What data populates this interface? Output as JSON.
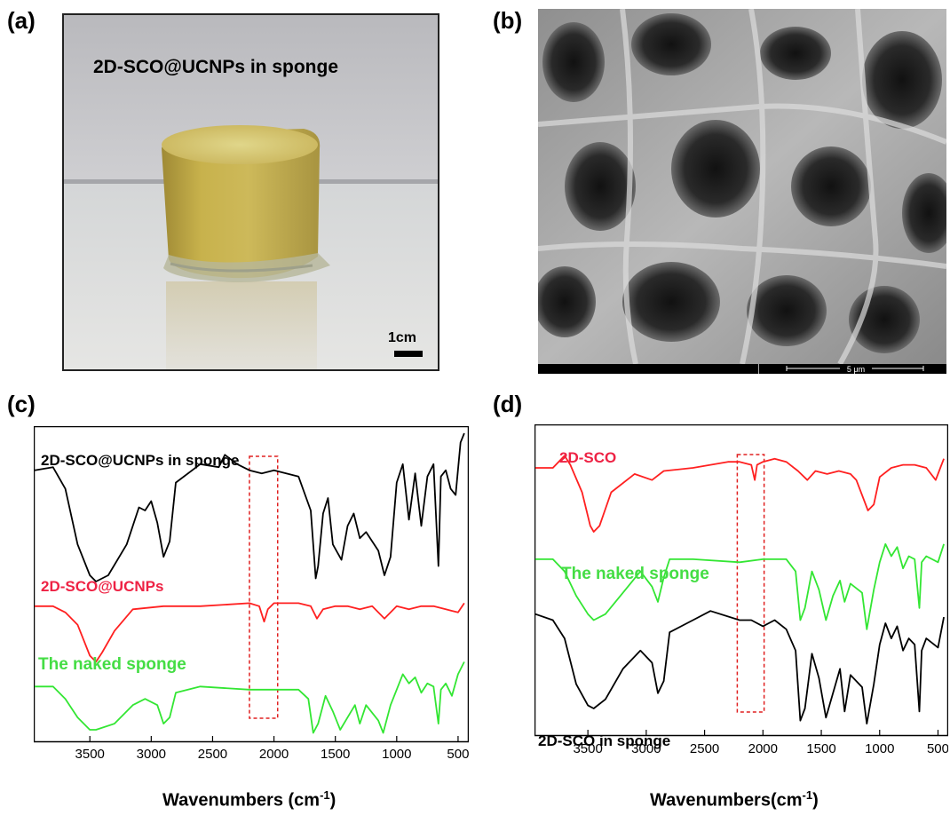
{
  "panels": {
    "a": {
      "label": "(a)",
      "caption": "2D-SCO@UCNPs in sponge",
      "scale_text": "1cm"
    },
    "b": {
      "label": "(b)",
      "scale_text": "5 μm"
    },
    "c": {
      "label": "(c)",
      "xlabel_text": "Wavenumbers (cm",
      "xlabel_sup": "-1",
      "xlabel_end": ")"
    },
    "d": {
      "label": "(d)",
      "xlabel_text": "Wavenumbers(cm",
      "xlabel_sup": "-1",
      "xlabel_end": ")"
    }
  },
  "chart_data": [
    {
      "type": "line",
      "panel": "c",
      "xlabel": "Wavenumbers (cm-1)",
      "ylabel": "",
      "xlim": [
        3950,
        420
      ],
      "x_reversed": true,
      "xticks": [
        3500,
        3000,
        2500,
        2000,
        1500,
        1000,
        500
      ],
      "grid": false,
      "highlight_range": [
        2200,
        1970
      ],
      "highlight_color": "#e02020",
      "series": [
        {
          "name": "2D-SCO@UCNPs in sponge",
          "color": "#000000",
          "label_color": "#000000",
          "points": [
            [
              3950,
              0.86
            ],
            [
              3800,
              0.87
            ],
            [
              3700,
              0.8
            ],
            [
              3600,
              0.62
            ],
            [
              3500,
              0.52
            ],
            [
              3450,
              0.5
            ],
            [
              3350,
              0.52
            ],
            [
              3200,
              0.62
            ],
            [
              3100,
              0.74
            ],
            [
              3050,
              0.73
            ],
            [
              3000,
              0.76
            ],
            [
              2950,
              0.69
            ],
            [
              2900,
              0.58
            ],
            [
              2850,
              0.63
            ],
            [
              2800,
              0.82
            ],
            [
              2600,
              0.88
            ],
            [
              2450,
              0.87
            ],
            [
              2400,
              0.91
            ],
            [
              2300,
              0.88
            ],
            [
              2200,
              0.86
            ],
            [
              2100,
              0.85
            ],
            [
              2000,
              0.86
            ],
            [
              1900,
              0.85
            ],
            [
              1800,
              0.84
            ],
            [
              1700,
              0.73
            ],
            [
              1660,
              0.51
            ],
            [
              1640,
              0.55
            ],
            [
              1600,
              0.72
            ],
            [
              1560,
              0.77
            ],
            [
              1520,
              0.62
            ],
            [
              1450,
              0.57
            ],
            [
              1400,
              0.68
            ],
            [
              1350,
              0.72
            ],
            [
              1300,
              0.64
            ],
            [
              1250,
              0.66
            ],
            [
              1150,
              0.6
            ],
            [
              1100,
              0.52
            ],
            [
              1050,
              0.58
            ],
            [
              1000,
              0.82
            ],
            [
              950,
              0.88
            ],
            [
              900,
              0.7
            ],
            [
              850,
              0.85
            ],
            [
              800,
              0.68
            ],
            [
              750,
              0.84
            ],
            [
              700,
              0.88
            ],
            [
              660,
              0.55
            ],
            [
              640,
              0.84
            ],
            [
              600,
              0.86
            ],
            [
              560,
              0.8
            ],
            [
              520,
              0.78
            ],
            [
              480,
              0.95
            ],
            [
              450,
              0.98
            ]
          ]
        },
        {
          "name": "2D-SCO@UCNPs",
          "color": "#ff2020",
          "label_color": "#ee2244",
          "points": [
            [
              3950,
              0.42
            ],
            [
              3800,
              0.42
            ],
            [
              3700,
              0.4
            ],
            [
              3600,
              0.36
            ],
            [
              3500,
              0.26
            ],
            [
              3450,
              0.24
            ],
            [
              3400,
              0.27
            ],
            [
              3300,
              0.34
            ],
            [
              3150,
              0.41
            ],
            [
              2900,
              0.42
            ],
            [
              2600,
              0.42
            ],
            [
              2200,
              0.43
            ],
            [
              2120,
              0.42
            ],
            [
              2080,
              0.37
            ],
            [
              2050,
              0.41
            ],
            [
              2000,
              0.43
            ],
            [
              1800,
              0.43
            ],
            [
              1700,
              0.42
            ],
            [
              1650,
              0.38
            ],
            [
              1600,
              0.41
            ],
            [
              1500,
              0.42
            ],
            [
              1400,
              0.42
            ],
            [
              1300,
              0.41
            ],
            [
              1200,
              0.42
            ],
            [
              1100,
              0.38
            ],
            [
              1050,
              0.4
            ],
            [
              1000,
              0.42
            ],
            [
              900,
              0.41
            ],
            [
              800,
              0.42
            ],
            [
              700,
              0.42
            ],
            [
              600,
              0.41
            ],
            [
              500,
              0.4
            ],
            [
              450,
              0.43
            ]
          ]
        },
        {
          "name": "The naked sponge",
          "color": "#33e633",
          "label_color": "#44dd44",
          "points": [
            [
              3950,
              0.16
            ],
            [
              3800,
              0.16
            ],
            [
              3700,
              0.12
            ],
            [
              3600,
              0.06
            ],
            [
              3500,
              0.02
            ],
            [
              3450,
              0.02
            ],
            [
              3300,
              0.04
            ],
            [
              3150,
              0.1
            ],
            [
              3050,
              0.12
            ],
            [
              2950,
              0.1
            ],
            [
              2900,
              0.04
            ],
            [
              2850,
              0.06
            ],
            [
              2800,
              0.14
            ],
            [
              2600,
              0.16
            ],
            [
              2200,
              0.15
            ],
            [
              2000,
              0.15
            ],
            [
              1800,
              0.15
            ],
            [
              1720,
              0.12
            ],
            [
              1680,
              0.01
            ],
            [
              1640,
              0.04
            ],
            [
              1580,
              0.13
            ],
            [
              1520,
              0.08
            ],
            [
              1460,
              0.02
            ],
            [
              1400,
              0.06
            ],
            [
              1340,
              0.1
            ],
            [
              1300,
              0.04
            ],
            [
              1250,
              0.1
            ],
            [
              1150,
              0.05
            ],
            [
              1110,
              0.01
            ],
            [
              1050,
              0.1
            ],
            [
              1000,
              0.15
            ],
            [
              950,
              0.2
            ],
            [
              900,
              0.17
            ],
            [
              850,
              0.19
            ],
            [
              800,
              0.14
            ],
            [
              750,
              0.17
            ],
            [
              700,
              0.16
            ],
            [
              660,
              0.04
            ],
            [
              640,
              0.15
            ],
            [
              600,
              0.17
            ],
            [
              550,
              0.13
            ],
            [
              500,
              0.2
            ],
            [
              450,
              0.24
            ]
          ]
        }
      ]
    },
    {
      "type": "line",
      "panel": "d",
      "xlabel": "Wavenumbers(cm-1)",
      "ylabel": "",
      "xlim": [
        3950,
        420
      ],
      "x_reversed": true,
      "xticks": [
        3500,
        3000,
        2500,
        2000,
        1500,
        1000,
        500
      ],
      "grid": false,
      "highlight_range": [
        2220,
        1990
      ],
      "highlight_color": "#e02020",
      "series": [
        {
          "name": "2D-SCO",
          "color": "#ff2020",
          "label_color": "#ee2244",
          "points": [
            [
              3950,
              0.86
            ],
            [
              3800,
              0.86
            ],
            [
              3700,
              0.9
            ],
            [
              3650,
              0.87
            ],
            [
              3550,
              0.78
            ],
            [
              3480,
              0.67
            ],
            [
              3450,
              0.65
            ],
            [
              3400,
              0.67
            ],
            [
              3300,
              0.78
            ],
            [
              3100,
              0.84
            ],
            [
              2950,
              0.82
            ],
            [
              2850,
              0.85
            ],
            [
              2600,
              0.86
            ],
            [
              2300,
              0.88
            ],
            [
              2200,
              0.88
            ],
            [
              2100,
              0.87
            ],
            [
              2070,
              0.82
            ],
            [
              2050,
              0.87
            ],
            [
              2000,
              0.88
            ],
            [
              1900,
              0.89
            ],
            [
              1800,
              0.88
            ],
            [
              1700,
              0.85
            ],
            [
              1620,
              0.82
            ],
            [
              1550,
              0.85
            ],
            [
              1450,
              0.84
            ],
            [
              1350,
              0.85
            ],
            [
              1250,
              0.84
            ],
            [
              1200,
              0.82
            ],
            [
              1100,
              0.72
            ],
            [
              1050,
              0.74
            ],
            [
              1000,
              0.83
            ],
            [
              900,
              0.86
            ],
            [
              800,
              0.87
            ],
            [
              700,
              0.87
            ],
            [
              600,
              0.86
            ],
            [
              520,
              0.82
            ],
            [
              480,
              0.86
            ],
            [
              450,
              0.89
            ]
          ]
        },
        {
          "name": "The naked sponge",
          "color": "#33e633",
          "label_color": "#44dd44",
          "points": [
            [
              3950,
              0.56
            ],
            [
              3800,
              0.56
            ],
            [
              3700,
              0.52
            ],
            [
              3600,
              0.44
            ],
            [
              3500,
              0.38
            ],
            [
              3450,
              0.36
            ],
            [
              3350,
              0.38
            ],
            [
              3200,
              0.45
            ],
            [
              3050,
              0.52
            ],
            [
              2950,
              0.47
            ],
            [
              2900,
              0.42
            ],
            [
              2850,
              0.5
            ],
            [
              2800,
              0.56
            ],
            [
              2600,
              0.56
            ],
            [
              2200,
              0.55
            ],
            [
              2000,
              0.56
            ],
            [
              1800,
              0.56
            ],
            [
              1720,
              0.52
            ],
            [
              1680,
              0.36
            ],
            [
              1640,
              0.4
            ],
            [
              1580,
              0.52
            ],
            [
              1520,
              0.46
            ],
            [
              1460,
              0.36
            ],
            [
              1400,
              0.44
            ],
            [
              1340,
              0.49
            ],
            [
              1300,
              0.42
            ],
            [
              1250,
              0.48
            ],
            [
              1150,
              0.45
            ],
            [
              1110,
              0.33
            ],
            [
              1050,
              0.46
            ],
            [
              1000,
              0.55
            ],
            [
              950,
              0.61
            ],
            [
              900,
              0.57
            ],
            [
              850,
              0.6
            ],
            [
              800,
              0.53
            ],
            [
              750,
              0.57
            ],
            [
              700,
              0.56
            ],
            [
              660,
              0.4
            ],
            [
              640,
              0.55
            ],
            [
              600,
              0.57
            ],
            [
              500,
              0.55
            ],
            [
              450,
              0.61
            ]
          ]
        },
        {
          "name": "2D-SCO in sponge",
          "color": "#000000",
          "label_color": "#000000",
          "points": [
            [
              3950,
              0.38
            ],
            [
              3800,
              0.36
            ],
            [
              3700,
              0.3
            ],
            [
              3600,
              0.15
            ],
            [
              3500,
              0.08
            ],
            [
              3450,
              0.07
            ],
            [
              3350,
              0.1
            ],
            [
              3200,
              0.2
            ],
            [
              3050,
              0.26
            ],
            [
              2950,
              0.22
            ],
            [
              2900,
              0.12
            ],
            [
              2850,
              0.16
            ],
            [
              2800,
              0.32
            ],
            [
              2600,
              0.36
            ],
            [
              2450,
              0.39
            ],
            [
              2200,
              0.36
            ],
            [
              2100,
              0.36
            ],
            [
              2000,
              0.34
            ],
            [
              1900,
              0.36
            ],
            [
              1800,
              0.33
            ],
            [
              1720,
              0.26
            ],
            [
              1680,
              0.03
            ],
            [
              1640,
              0.07
            ],
            [
              1580,
              0.25
            ],
            [
              1520,
              0.17
            ],
            [
              1460,
              0.04
            ],
            [
              1400,
              0.12
            ],
            [
              1340,
              0.2
            ],
            [
              1300,
              0.06
            ],
            [
              1250,
              0.18
            ],
            [
              1150,
              0.14
            ],
            [
              1110,
              0.02
            ],
            [
              1050,
              0.15
            ],
            [
              1000,
              0.28
            ],
            [
              950,
              0.35
            ],
            [
              900,
              0.3
            ],
            [
              850,
              0.34
            ],
            [
              800,
              0.26
            ],
            [
              750,
              0.3
            ],
            [
              700,
              0.28
            ],
            [
              660,
              0.06
            ],
            [
              640,
              0.26
            ],
            [
              600,
              0.3
            ],
            [
              500,
              0.27
            ],
            [
              450,
              0.37
            ]
          ]
        }
      ]
    }
  ]
}
